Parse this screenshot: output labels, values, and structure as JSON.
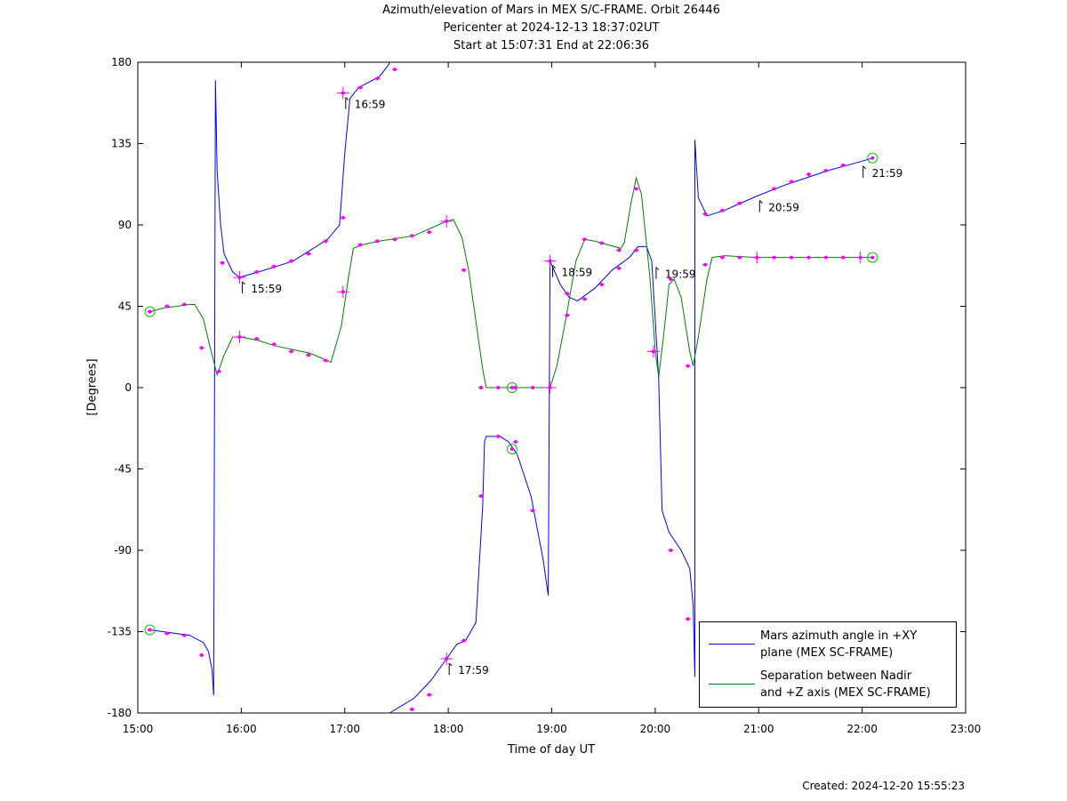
{
  "title": {
    "line1": "Azimuth/elevation of Mars in MEX S/C-FRAME.  Orbit 26446",
    "line2": "Pericenter at 2024-12-13 18:37:02UT",
    "line3": "Start at 15:07:31 End at 22:06:36"
  },
  "footer": {
    "created": "Created: 2024-12-20 15:55:23"
  },
  "colors": {
    "azimuth": "#0000ff",
    "separation": "#008000",
    "markers": "#ff00ff",
    "endpoints": "#00cc00"
  },
  "chart_data": {
    "type": "line",
    "xlabel": "Time of day UT",
    "ylabel": "[Degrees]",
    "xlim": [
      "15:00",
      "23:00"
    ],
    "ylim": [
      -180,
      180
    ],
    "x_ticks": [
      "15:00",
      "16:00",
      "17:00",
      "18:00",
      "19:00",
      "20:00",
      "21:00",
      "22:00",
      "23:00"
    ],
    "y_ticks": [
      "180",
      "135",
      "90",
      "45",
      "0",
      "-45",
      "-90",
      "-135",
      "-180"
    ],
    "grid": false,
    "legend_position": "bottom-right",
    "annotations": [
      {
        "time": "15:59",
        "value": 61
      },
      {
        "time": "16:59",
        "value": 163
      },
      {
        "time": "17:59",
        "value": -150
      },
      {
        "time": "18:59",
        "value": 70
      },
      {
        "time": "19:59",
        "value": 69
      },
      {
        "time": "20:59",
        "value": 106
      },
      {
        "time": "21:59",
        "value": 125
      }
    ],
    "series": [
      {
        "name": "Mars azimuth angle in +XY\nplane (MEX SC-FRAME)",
        "color": "#0000ff",
        "segments": [
          [
            [
              "15:07",
              -134
            ],
            [
              "15:30",
              -137
            ],
            [
              "15:38",
              -141
            ],
            [
              "15:41",
              -146
            ],
            [
              "15:43",
              -156
            ],
            [
              "15:44",
              -170
            ]
          ],
          [
            [
              "15:44",
              -170
            ],
            [
              "15:45",
              170
            ],
            [
              "15:46",
              120
            ],
            [
              "15:48",
              90
            ],
            [
              "15:50",
              74
            ],
            [
              "15:55",
              64
            ],
            [
              "15:59",
              61
            ],
            [
              "16:10",
              64
            ],
            [
              "16:30",
              70
            ],
            [
              "16:50",
              82
            ],
            [
              "16:57",
              90
            ],
            [
              "17:00",
              130
            ],
            [
              "17:03",
              160
            ],
            [
              "17:08",
              166
            ],
            [
              "17:20",
              172
            ],
            [
              "17:25",
              178
            ],
            [
              "17:26",
              180
            ]
          ],
          [
            [
              "17:26",
              -180
            ],
            [
              "17:40",
              -172
            ],
            [
              "17:50",
              -162
            ],
            [
              "17:59",
              -150
            ],
            [
              "18:05",
              -142
            ],
            [
              "18:10",
              -140
            ],
            [
              "18:16",
              -130
            ],
            [
              "18:20",
              -65
            ],
            [
              "18:21",
              -30
            ],
            [
              "18:22",
              -27
            ],
            [
              "18:30",
              -27
            ],
            [
              "18:35",
              -30
            ],
            [
              "18:40",
              -37
            ],
            [
              "18:48",
              -60
            ],
            [
              "18:55",
              -95
            ],
            [
              "18:58",
              -115
            ]
          ],
          [
            [
              "18:58",
              -115
            ],
            [
              "18:59",
              70
            ],
            [
              "19:05",
              57
            ],
            [
              "19:10",
              50
            ],
            [
              "19:15",
              48
            ],
            [
              "19:25",
              55
            ],
            [
              "19:35",
              65
            ],
            [
              "19:45",
              72
            ],
            [
              "19:50",
              78
            ],
            [
              "19:55",
              78
            ],
            [
              "19:58",
              70
            ],
            [
              "20:02",
              5
            ],
            [
              "20:04",
              -68
            ],
            [
              "20:08",
              -80
            ],
            [
              "20:15",
              -90
            ],
            [
              "20:20",
              -100
            ],
            [
              "20:22",
              -120
            ],
            [
              "20:23",
              -160
            ]
          ],
          [
            [
              "20:23",
              -160
            ],
            [
              "20:23",
              137
            ],
            [
              "20:25",
              105
            ],
            [
              "20:30",
              95
            ],
            [
              "20:40",
              98
            ],
            [
              "20:59",
              106
            ],
            [
              "21:15",
              112
            ],
            [
              "21:40",
              120
            ],
            [
              "21:59",
              125
            ],
            [
              "22:06",
              127
            ]
          ]
        ],
        "markers": [
          [
            "15:07",
            -134
          ],
          [
            "15:17",
            -136
          ],
          [
            "15:27",
            -137
          ],
          [
            "15:37",
            -148
          ],
          [
            "15:49",
            69
          ],
          [
            "16:09",
            64
          ],
          [
            "16:19",
            67
          ],
          [
            "16:29",
            70
          ],
          [
            "16:39",
            74
          ],
          [
            "16:49",
            81
          ],
          [
            "16:59",
            94
          ],
          [
            "17:09",
            166
          ],
          [
            "17:19",
            171
          ],
          [
            "17:29",
            176
          ],
          [
            "17:39",
            -178
          ],
          [
            "17:49",
            -170
          ],
          [
            "18:09",
            -140
          ],
          [
            "18:19",
            -60
          ],
          [
            "18:29",
            -27
          ],
          [
            "18:39",
            -30
          ],
          [
            "18:49",
            -68
          ],
          [
            "19:09",
            52
          ],
          [
            "19:19",
            49
          ],
          [
            "19:29",
            57
          ],
          [
            "19:39",
            66
          ],
          [
            "19:49",
            76
          ],
          [
            "19:59",
            20
          ],
          [
            "20:09",
            -90
          ],
          [
            "20:19",
            -128
          ],
          [
            "20:29",
            96
          ],
          [
            "20:39",
            98
          ],
          [
            "20:49",
            102
          ],
          [
            "21:09",
            110
          ],
          [
            "21:19",
            114
          ],
          [
            "21:29",
            118
          ],
          [
            "21:39",
            120
          ],
          [
            "21:49",
            123
          ]
        ],
        "cross_markers": [
          [
            "15:59",
            61
          ],
          [
            "16:59",
            163
          ],
          [
            "17:59",
            -150
          ],
          [
            "18:59",
            70
          ]
        ],
        "endpoints": [
          [
            "15:07",
            -134
          ],
          [
            "18:37",
            -34
          ],
          [
            "22:06",
            127
          ]
        ]
      },
      {
        "name": "Separation between Nadir\nand +Z axis (MEX SC-FRAME)",
        "color": "#008000",
        "segments": [
          [
            [
              "15:07",
              42
            ],
            [
              "15:15",
              44
            ],
            [
              "15:30",
              46
            ],
            [
              "15:33",
              46
            ],
            [
              "15:38",
              38
            ],
            [
              "15:42",
              22
            ],
            [
              "15:46",
              7
            ],
            [
              "15:50",
              18
            ],
            [
              "15:55",
              28
            ],
            [
              "16:00",
              28
            ],
            [
              "16:10",
              26
            ],
            [
              "16:20",
              23
            ],
            [
              "16:40",
              19
            ],
            [
              "16:52",
              14
            ],
            [
              "16:58",
              34
            ],
            [
              "17:02",
              60
            ],
            [
              "17:05",
              77
            ],
            [
              "17:10",
              79
            ],
            [
              "17:20",
              81
            ],
            [
              "17:40",
              84
            ],
            [
              "17:59",
              92
            ],
            [
              "18:03",
              93
            ],
            [
              "18:08",
              83
            ],
            [
              "18:12",
              64
            ],
            [
              "18:20",
              10
            ],
            [
              "18:22",
              0
            ],
            [
              "18:30",
              0
            ],
            [
              "18:59",
              0
            ],
            [
              "19:03",
              12
            ],
            [
              "19:08",
              37
            ],
            [
              "19:14",
              70
            ],
            [
              "19:19",
              82
            ],
            [
              "19:25",
              81
            ],
            [
              "19:40",
              77
            ],
            [
              "19:42",
              80
            ],
            [
              "19:46",
              102
            ],
            [
              "19:49",
              116
            ],
            [
              "19:52",
              107
            ],
            [
              "19:57",
              60
            ],
            [
              "20:00",
              20
            ],
            [
              "20:02",
              6
            ],
            [
              "20:05",
              30
            ],
            [
              "20:08",
              57
            ],
            [
              "20:11",
              60
            ],
            [
              "20:15",
              50
            ],
            [
              "20:20",
              20
            ],
            [
              "20:22",
              12
            ],
            [
              "20:25",
              28
            ],
            [
              "20:30",
              60
            ],
            [
              "20:33",
              72
            ],
            [
              "20:40",
              73
            ],
            [
              "20:59",
              72
            ],
            [
              "21:30",
              72
            ],
            [
              "21:59",
              72
            ],
            [
              "22:06",
              72
            ]
          ]
        ],
        "markers": [
          [
            "15:07",
            42
          ],
          [
            "15:17",
            45
          ],
          [
            "15:27",
            46
          ],
          [
            "15:37",
            22
          ],
          [
            "15:47",
            9
          ],
          [
            "16:09",
            27
          ],
          [
            "16:19",
            24
          ],
          [
            "16:29",
            20
          ],
          [
            "16:39",
            18
          ],
          [
            "16:49",
            15
          ],
          [
            "17:09",
            79
          ],
          [
            "17:19",
            81
          ],
          [
            "17:29",
            82
          ],
          [
            "17:39",
            84
          ],
          [
            "17:49",
            86
          ],
          [
            "18:09",
            65
          ],
          [
            "18:19",
            0
          ],
          [
            "18:29",
            0
          ],
          [
            "18:39",
            0
          ],
          [
            "18:49",
            0
          ],
          [
            "19:09",
            40
          ],
          [
            "19:19",
            82
          ],
          [
            "19:29",
            80
          ],
          [
            "19:39",
            76
          ],
          [
            "19:49",
            110
          ],
          [
            "20:09",
            60
          ],
          [
            "20:19",
            12
          ],
          [
            "20:29",
            68
          ],
          [
            "20:39",
            72
          ],
          [
            "20:49",
            72
          ],
          [
            "21:09",
            72
          ],
          [
            "21:19",
            72
          ],
          [
            "21:29",
            72
          ],
          [
            "21:39",
            72
          ],
          [
            "21:49",
            72
          ]
        ],
        "cross_markers": [
          [
            "15:59",
            28
          ],
          [
            "16:59",
            53
          ],
          [
            "17:59",
            92
          ],
          [
            "18:59",
            0
          ],
          [
            "19:59",
            20
          ],
          [
            "20:59",
            72
          ],
          [
            "21:59",
            72
          ]
        ],
        "endpoints": [
          [
            "15:07",
            42
          ],
          [
            "18:37",
            0
          ],
          [
            "22:06",
            72
          ]
        ]
      }
    ]
  }
}
